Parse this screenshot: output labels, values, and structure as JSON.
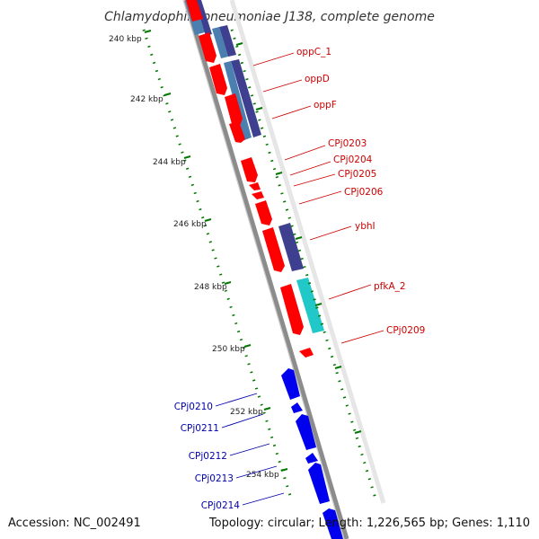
{
  "title": "Chlamydophila pneumoniae J138, complete genome",
  "footer": {
    "accession": "Accession: NC_002491",
    "summary": "Topology: circular; Length: 1,226,565 bp; Genes: 1,110"
  },
  "kbp_ticks": [
    "240 kbp",
    "242 kbp",
    "244 kbp",
    "246 kbp",
    "248 kbp",
    "250 kbp",
    "252 kbp",
    "254 kbp"
  ],
  "gene_labels_forward": [
    "oppC_1",
    "oppD",
    "oppF",
    "CPj0203",
    "CPj0204",
    "CPj0205",
    "CPj0206",
    "ybhI",
    "pfkA_2",
    "CPj0209"
  ],
  "gene_labels_reverse": [
    "CPj0210",
    "CPj0211",
    "CPj0212",
    "CPj0213",
    "CPj0214"
  ],
  "colors": {
    "forward_gene": "#ff0000",
    "reverse_gene": "#0000ee",
    "label_forward": "#cc0000",
    "label_reverse": "#0000aa",
    "tick": "#007700",
    "backbone": "#8c8c8c",
    "cog_dark": "#3f3f8f",
    "cog_steel": "#4a7fb0",
    "cog_cyan": "#22c8c8"
  }
}
